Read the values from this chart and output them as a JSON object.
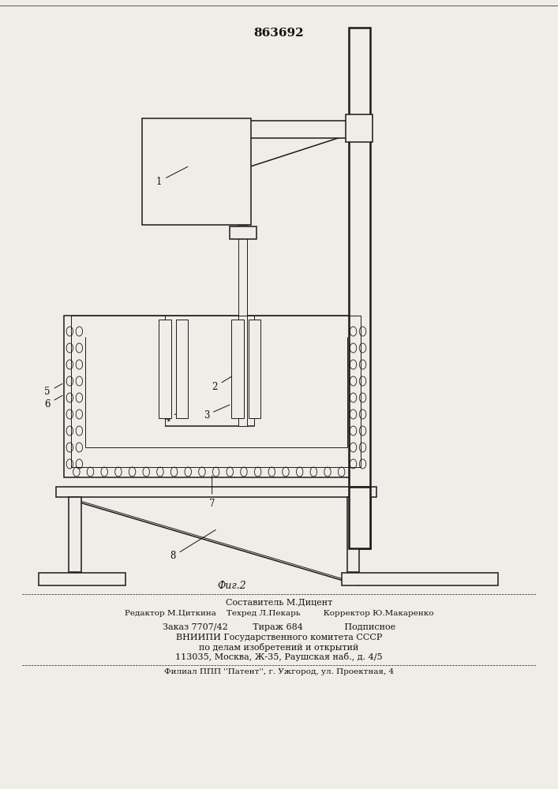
{
  "patent_number": "863692",
  "fig_label": "Фиг.2",
  "footer_lines": [
    "Составитель М.Дицент",
    "Редактор М.Циткина    Техред Л.Пекарь         Корректор Ю.Макаренко",
    "Заказ 7707/42         Тираж 684               Подписное",
    "ВНИИПИ Государственного комитета СССР",
    "по делам изобретений и открытий",
    "113035, Москва, Ж-35, Раушская наб., д. 4/5",
    "Филиал ППП ''Патент'', г. Ужгород, ул. Проектная, 4"
  ],
  "bg_color": "#f0ede8",
  "line_color": "#1a1a1a",
  "lw_thin": 0.7,
  "lw_med": 1.1,
  "lw_thick": 1.8
}
